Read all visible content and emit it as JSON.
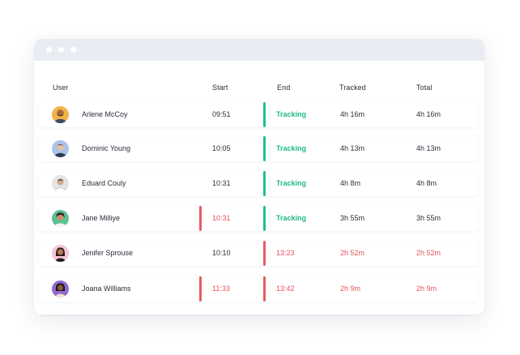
{
  "columns": {
    "user": "User",
    "start": "Start",
    "end": "End",
    "tracked": "Tracked",
    "total": "Total"
  },
  "colors": {
    "ok": "#22c08a",
    "alert": "#ea5a62"
  },
  "rows": [
    {
      "name": "Arlene McCoy",
      "start": "09:51",
      "end": "Tracking",
      "tracked": "4h 16m",
      "total": "4h 16m",
      "start_flag": "none",
      "end_flag": "green",
      "avatar": "avatar-man-beard"
    },
    {
      "name": "Dominic Young",
      "start": "10:05",
      "end": "Tracking",
      "tracked": "4h 13m",
      "total": "4h 13m",
      "start_flag": "none",
      "end_flag": "green",
      "avatar": "avatar-man-light"
    },
    {
      "name": "Eduard Couly",
      "start": "10:31",
      "end": "Tracking",
      "tracked": "4h 8m",
      "total": "4h 8m",
      "start_flag": "none",
      "end_flag": "green",
      "avatar": "avatar-man-grey"
    },
    {
      "name": "Jane Milliye",
      "start": "10:31",
      "end": "Tracking",
      "tracked": "3h 55m",
      "total": "3h 55m",
      "start_flag": "red",
      "end_flag": "green",
      "avatar": "avatar-woman-green"
    },
    {
      "name": "Jenifer Sprouse",
      "start": "10:10",
      "end": "13:23",
      "tracked": "2h 52m",
      "total": "2h 52m",
      "start_flag": "none",
      "end_flag": "red",
      "avatar": "avatar-woman-pink"
    },
    {
      "name": "Joana Williams",
      "start": "11:33",
      "end": "13:42",
      "tracked": "2h 9m",
      "total": "2h 9m",
      "start_flag": "red",
      "end_flag": "red",
      "avatar": "avatar-woman-purple"
    }
  ]
}
